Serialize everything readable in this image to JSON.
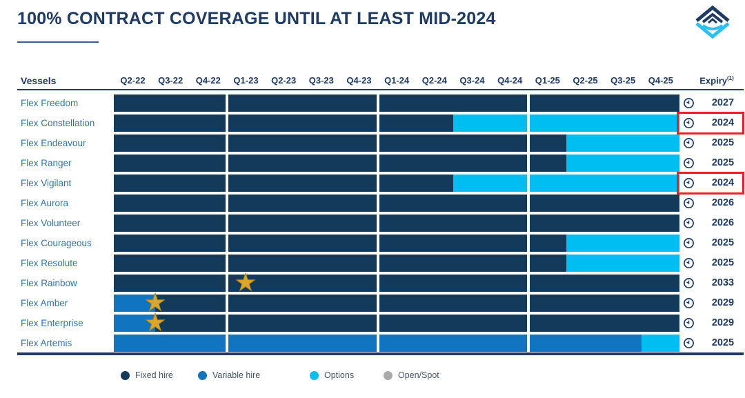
{
  "title": "100% CONTRACT COVERAGE UNTIL AT LEAST MID-2024",
  "logo_name": "flex-lng-logo",
  "table": {
    "vessels_header": "Vessels",
    "expiry_header": "Expiry",
    "expiry_superscript": "(1)"
  },
  "colors": {
    "fixed": "#13395b",
    "variable": "#1074c0",
    "options": "#00bdf2",
    "open_spot": "#a9a9a9",
    "navy_text": "#1f3a63",
    "vessel_label": "#2e74b5",
    "highlight_box": "#eb1f25",
    "star_gold": "#d9a62e"
  },
  "legend": {
    "items": [
      {
        "label": "Fixed hire",
        "type": "fixed"
      },
      {
        "label": "Variable hire",
        "type": "variable"
      },
      {
        "label": "Options",
        "type": "options"
      },
      {
        "label": "Open/Spot",
        "type": "open_spot"
      }
    ]
  },
  "chart_data": {
    "type": "bar",
    "subtype": "horizontal-gantt-timeline",
    "title": "100% CONTRACT COVERAGE UNTIL AT LEAST MID-2024",
    "x": [
      "Q2-22",
      "Q3-22",
      "Q4-22",
      "Q1-23",
      "Q2-23",
      "Q3-23",
      "Q4-23",
      "Q1-24",
      "Q2-24",
      "Q3-24",
      "Q4-24",
      "Q1-25",
      "Q2-25",
      "Q3-25",
      "Q4-25"
    ],
    "x_axis_unit": "quarter",
    "legend_entries": [
      "Fixed hire",
      "Variable hire",
      "Options",
      "Open/Spot"
    ],
    "legend_position": "bottom",
    "grid": false,
    "rows": [
      {
        "vessel": "Flex Freedom",
        "expiry": "2027",
        "boxed": false,
        "stars": [],
        "segments": [
          {
            "type": "fixed",
            "from": 0,
            "to": 15
          }
        ]
      },
      {
        "vessel": "Flex Constellation",
        "expiry": "2024",
        "boxed": true,
        "stars": [],
        "segments": [
          {
            "type": "fixed",
            "from": 0,
            "to": 9
          },
          {
            "type": "options",
            "from": 9,
            "to": 15
          }
        ]
      },
      {
        "vessel": "Flex Endeavour",
        "expiry": "2025",
        "boxed": false,
        "stars": [],
        "segments": [
          {
            "type": "fixed",
            "from": 0,
            "to": 12
          },
          {
            "type": "options",
            "from": 12,
            "to": 15
          }
        ]
      },
      {
        "vessel": "Flex Ranger",
        "expiry": "2025",
        "boxed": false,
        "stars": [],
        "segments": [
          {
            "type": "fixed",
            "from": 0,
            "to": 12
          },
          {
            "type": "options",
            "from": 12,
            "to": 15
          }
        ]
      },
      {
        "vessel": "Flex Vigilant",
        "expiry": "2024",
        "boxed": true,
        "stars": [],
        "segments": [
          {
            "type": "fixed",
            "from": 0,
            "to": 9
          },
          {
            "type": "options",
            "from": 9,
            "to": 15
          }
        ]
      },
      {
        "vessel": "Flex Aurora",
        "expiry": "2026",
        "boxed": false,
        "stars": [],
        "segments": [
          {
            "type": "fixed",
            "from": 0,
            "to": 15
          }
        ]
      },
      {
        "vessel": "Flex Volunteer",
        "expiry": "2026",
        "boxed": false,
        "stars": [],
        "segments": [
          {
            "type": "fixed",
            "from": 0,
            "to": 15
          }
        ]
      },
      {
        "vessel": "Flex Courageous",
        "expiry": "2025",
        "boxed": false,
        "stars": [],
        "segments": [
          {
            "type": "fixed",
            "from": 0,
            "to": 12
          },
          {
            "type": "options",
            "from": 12,
            "to": 15
          }
        ]
      },
      {
        "vessel": "Flex Resolute",
        "expiry": "2025",
        "boxed": false,
        "stars": [],
        "segments": [
          {
            "type": "fixed",
            "from": 0,
            "to": 12
          },
          {
            "type": "options",
            "from": 12,
            "to": 15
          }
        ]
      },
      {
        "vessel": "Flex Rainbow",
        "expiry": "2033",
        "boxed": false,
        "stars": [
          3.5
        ],
        "segments": [
          {
            "type": "fixed",
            "from": 0,
            "to": 15
          }
        ]
      },
      {
        "vessel": "Flex Amber",
        "expiry": "2029",
        "boxed": false,
        "stars": [
          1.1
        ],
        "segments": [
          {
            "type": "variable",
            "from": 0,
            "to": 1.1
          },
          {
            "type": "fixed",
            "from": 1.1,
            "to": 15
          }
        ]
      },
      {
        "vessel": "Flex Enterprise",
        "expiry": "2029",
        "boxed": false,
        "stars": [
          1.1
        ],
        "segments": [
          {
            "type": "variable",
            "from": 0,
            "to": 1.1
          },
          {
            "type": "fixed",
            "from": 1.1,
            "to": 15
          }
        ]
      },
      {
        "vessel": "Flex Artemis",
        "expiry": "2025",
        "boxed": false,
        "stars": [],
        "segments": [
          {
            "type": "variable",
            "from": 0,
            "to": 14
          },
          {
            "type": "options",
            "from": 14,
            "to": 15
          }
        ]
      }
    ]
  }
}
